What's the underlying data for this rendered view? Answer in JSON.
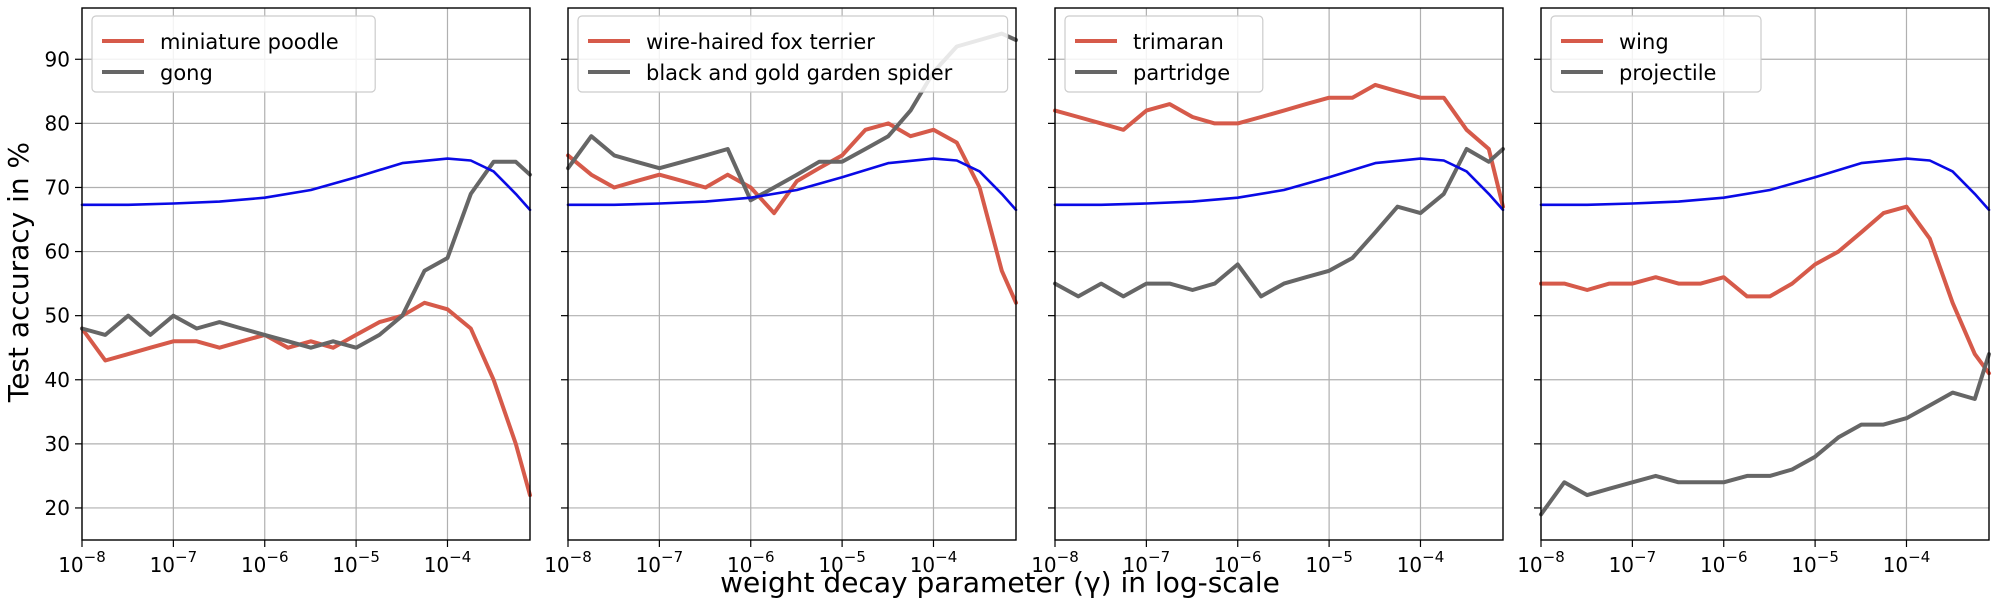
{
  "figure": {
    "xlabel": "weight decay parameter (γ) in log-scale",
    "ylabel": "Test accuracy in %"
  },
  "colors": {
    "red": "#d65a4a",
    "gray": "#666666",
    "blue": "#0a0ae6",
    "grid": "#b0b0b0"
  },
  "chart_data": [
    {
      "type": "line",
      "xscale": "log",
      "xlim": [
        1e-08,
        0.0008
      ],
      "ylim": [
        15,
        98
      ],
      "grid": true,
      "legend": "top-left",
      "x_ticks": [
        "10^-8",
        "10^-7",
        "10^-6",
        "10^-5",
        "10^-4"
      ],
      "y_ticks": [
        20,
        30,
        40,
        50,
        60,
        70,
        80,
        90
      ],
      "series": [
        {
          "name": "miniature poodle",
          "color": "#d65a4a",
          "x": [
            1e-08,
            1.8e-08,
            3.2e-08,
            5.6e-08,
            1e-07,
            1.8e-07,
            3.2e-07,
            5.6e-07,
            1e-06,
            1.8e-06,
            3.2e-06,
            5.6e-06,
            1e-05,
            1.8e-05,
            3.2e-05,
            5.6e-05,
            0.0001,
            0.00018,
            0.00032,
            0.00056,
            0.0008
          ],
          "values": [
            48,
            43,
            44,
            45,
            46,
            46,
            45,
            46,
            47,
            45,
            46,
            45,
            47,
            49,
            50,
            52,
            51,
            48,
            40,
            30,
            22
          ]
        },
        {
          "name": "gong",
          "color": "#666666",
          "x": [
            1e-08,
            1.8e-08,
            3.2e-08,
            5.6e-08,
            1e-07,
            1.8e-07,
            3.2e-07,
            5.6e-07,
            1e-06,
            1.8e-06,
            3.2e-06,
            5.6e-06,
            1e-05,
            1.8e-05,
            3.2e-05,
            5.6e-05,
            0.0001,
            0.00018,
            0.00032,
            0.00056,
            0.0008
          ],
          "values": [
            48,
            47,
            50,
            47,
            50,
            48,
            49,
            48,
            47,
            46,
            45,
            46,
            45,
            47,
            50,
            57,
            59,
            69,
            74,
            74,
            72
          ]
        },
        {
          "color": "#0a0ae6",
          "x": [
            1e-08,
            3.2e-08,
            1e-07,
            3.2e-07,
            1e-06,
            3.2e-06,
            1e-05,
            3.2e-05,
            0.0001,
            0.00018,
            0.00032,
            0.00056,
            0.0008
          ],
          "values": [
            67.3,
            67.3,
            67.5,
            67.8,
            68.4,
            69.6,
            71.6,
            73.8,
            74.5,
            74.2,
            72.5,
            69,
            66.5
          ]
        }
      ]
    },
    {
      "type": "line",
      "xscale": "log",
      "xlim": [
        1e-08,
        0.0008
      ],
      "ylim": [
        15,
        98
      ],
      "grid": true,
      "legend": "top-left",
      "x_ticks": [
        "10^-8",
        "10^-7",
        "10^-6",
        "10^-5",
        "10^-4"
      ],
      "series": [
        {
          "name": "wire-haired fox terrier",
          "color": "#d65a4a",
          "x": [
            1e-08,
            1.8e-08,
            3.2e-08,
            5.6e-08,
            1e-07,
            1.8e-07,
            3.2e-07,
            5.6e-07,
            1e-06,
            1.8e-06,
            3.2e-06,
            5.6e-06,
            1e-05,
            1.8e-05,
            3.2e-05,
            5.6e-05,
            0.0001,
            0.00018,
            0.00032,
            0.00056,
            0.0008
          ],
          "values": [
            75,
            72,
            70,
            71,
            72,
            71,
            70,
            72,
            70,
            66,
            71,
            73,
            75,
            79,
            80,
            78,
            79,
            77,
            70,
            57,
            52
          ]
        },
        {
          "name": "black and gold garden spider",
          "color": "#666666",
          "x": [
            1e-08,
            1.8e-08,
            3.2e-08,
            5.6e-08,
            1e-07,
            1.8e-07,
            3.2e-07,
            5.6e-07,
            1e-06,
            1.8e-06,
            3.2e-06,
            5.6e-06,
            1e-05,
            1.8e-05,
            3.2e-05,
            5.6e-05,
            0.0001,
            0.00018,
            0.00032,
            0.00056,
            0.0008
          ],
          "values": [
            73,
            78,
            75,
            74,
            73,
            74,
            75,
            76,
            68,
            70,
            72,
            74,
            74,
            76,
            78,
            82,
            88,
            92,
            93,
            94,
            93
          ]
        },
        {
          "color": "#0a0ae6",
          "x": [
            1e-08,
            3.2e-08,
            1e-07,
            3.2e-07,
            1e-06,
            3.2e-06,
            1e-05,
            3.2e-05,
            0.0001,
            0.00018,
            0.00032,
            0.00056,
            0.0008
          ],
          "values": [
            67.3,
            67.3,
            67.5,
            67.8,
            68.4,
            69.6,
            71.6,
            73.8,
            74.5,
            74.2,
            72.5,
            69,
            66.5
          ]
        }
      ]
    },
    {
      "type": "line",
      "xscale": "log",
      "xlim": [
        1e-08,
        0.0008
      ],
      "ylim": [
        15,
        98
      ],
      "grid": true,
      "legend": "top-left",
      "x_ticks": [
        "10^-8",
        "10^-7",
        "10^-6",
        "10^-5",
        "10^-4"
      ],
      "series": [
        {
          "name": "trimaran",
          "color": "#d65a4a",
          "x": [
            1e-08,
            1.8e-08,
            3.2e-08,
            5.6e-08,
            1e-07,
            1.8e-07,
            3.2e-07,
            5.6e-07,
            1e-06,
            1.8e-06,
            3.2e-06,
            5.6e-06,
            1e-05,
            1.8e-05,
            3.2e-05,
            5.6e-05,
            0.0001,
            0.00018,
            0.00032,
            0.00056,
            0.0008
          ],
          "values": [
            82,
            81,
            80,
            79,
            82,
            83,
            81,
            80,
            80,
            81,
            82,
            83,
            84,
            84,
            86,
            85,
            84,
            84,
            79,
            76,
            67
          ]
        },
        {
          "name": "partridge",
          "color": "#666666",
          "x": [
            1e-08,
            1.8e-08,
            3.2e-08,
            5.6e-08,
            1e-07,
            1.8e-07,
            3.2e-07,
            5.6e-07,
            1e-06,
            1.8e-06,
            3.2e-06,
            5.6e-06,
            1e-05,
            1.8e-05,
            3.2e-05,
            5.6e-05,
            0.0001,
            0.00018,
            0.00032,
            0.00056,
            0.0008
          ],
          "values": [
            55,
            53,
            55,
            53,
            55,
            55,
            54,
            55,
            58,
            53,
            55,
            56,
            57,
            59,
            63,
            67,
            66,
            69,
            76,
            74,
            76
          ]
        },
        {
          "color": "#0a0ae6",
          "x": [
            1e-08,
            3.2e-08,
            1e-07,
            3.2e-07,
            1e-06,
            3.2e-06,
            1e-05,
            3.2e-05,
            0.0001,
            0.00018,
            0.00032,
            0.00056,
            0.0008
          ],
          "values": [
            67.3,
            67.3,
            67.5,
            67.8,
            68.4,
            69.6,
            71.6,
            73.8,
            74.5,
            74.2,
            72.5,
            69,
            66.5
          ]
        }
      ]
    },
    {
      "type": "line",
      "xscale": "log",
      "xlim": [
        1e-08,
        0.0008
      ],
      "ylim": [
        15,
        98
      ],
      "grid": true,
      "legend": "top-left",
      "x_ticks": [
        "10^-8",
        "10^-7",
        "10^-6",
        "10^-5",
        "10^-4"
      ],
      "series": [
        {
          "name": "wing",
          "color": "#d65a4a",
          "x": [
            1e-08,
            1.8e-08,
            3.2e-08,
            5.6e-08,
            1e-07,
            1.8e-07,
            3.2e-07,
            5.6e-07,
            1e-06,
            1.8e-06,
            3.2e-06,
            5.6e-06,
            1e-05,
            1.8e-05,
            3.2e-05,
            5.6e-05,
            0.0001,
            0.00018,
            0.00032,
            0.00056,
            0.0008
          ],
          "values": [
            55,
            55,
            54,
            55,
            55,
            56,
            55,
            55,
            56,
            53,
            53,
            55,
            58,
            60,
            63,
            66,
            67,
            62,
            52,
            44,
            41
          ]
        },
        {
          "name": "projectile",
          "color": "#666666",
          "x": [
            1e-08,
            1.8e-08,
            3.2e-08,
            5.6e-08,
            1e-07,
            1.8e-07,
            3.2e-07,
            5.6e-07,
            1e-06,
            1.8e-06,
            3.2e-06,
            5.6e-06,
            1e-05,
            1.8e-05,
            3.2e-05,
            5.6e-05,
            0.0001,
            0.00018,
            0.00032,
            0.00056,
            0.0008
          ],
          "values": [
            19,
            24,
            22,
            23,
            24,
            25,
            24,
            24,
            24,
            25,
            25,
            26,
            28,
            31,
            33,
            33,
            34,
            36,
            38,
            37,
            44
          ]
        },
        {
          "color": "#0a0ae6",
          "x": [
            1e-08,
            3.2e-08,
            1e-07,
            3.2e-07,
            1e-06,
            3.2e-06,
            1e-05,
            3.2e-05,
            0.0001,
            0.00018,
            0.00032,
            0.00056,
            0.0008
          ],
          "values": [
            67.3,
            67.3,
            67.5,
            67.8,
            68.4,
            69.6,
            71.6,
            73.8,
            74.5,
            74.2,
            72.5,
            69,
            66.5
          ]
        }
      ]
    }
  ]
}
